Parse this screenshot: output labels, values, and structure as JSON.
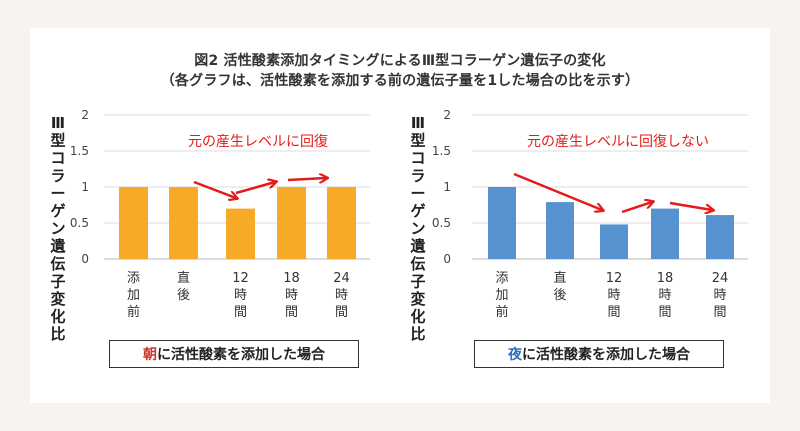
{
  "figure": {
    "title": "図2 活性酸素添加タイミングによるⅢ型コラーゲン遺伝子の変化",
    "subtitle": "（各グラフは、活性酸素を添加する前の遺伝子量を1した場合の比を示す）"
  },
  "chart_data": [
    {
      "type": "bar",
      "ylabel": "Ⅲ型コラーゲン遺伝子変化比",
      "ylim": [
        0,
        2
      ],
      "yticks": [
        "0",
        "0.5",
        "1",
        "1.5",
        "2"
      ],
      "grid": true,
      "categories": [
        "添加前",
        "直後",
        "12時間",
        "18時間",
        "24時間"
      ],
      "values": [
        1.0,
        1.0,
        0.7,
        1.0,
        1.0
      ],
      "bar_color": "#f7a928",
      "annotation": "元の産生レベルに回復",
      "caption_prefix": "朝",
      "caption_rest": "に活性酸素を添加した場合",
      "caption_prefix_color": "#d1322b"
    },
    {
      "type": "bar",
      "ylabel": "Ⅲ型コラーゲン遺伝子変化比",
      "ylim": [
        0,
        2
      ],
      "yticks": [
        "0",
        "0.5",
        "1",
        "1.5",
        "2"
      ],
      "grid": true,
      "categories": [
        "添加前",
        "直後",
        "12時間",
        "18時間",
        "24時間"
      ],
      "values": [
        1.0,
        0.79,
        0.48,
        0.7,
        0.61
      ],
      "bar_color": "#5592cf",
      "annotation": "元の産生レベルに回復しない",
      "caption_prefix": "夜",
      "caption_rest": "に活性酸素を添加した場合",
      "caption_prefix_color": "#2e6fbf"
    }
  ],
  "colors": {
    "arrow": "#e31b1b",
    "annotation_text": "#e31b1b"
  }
}
